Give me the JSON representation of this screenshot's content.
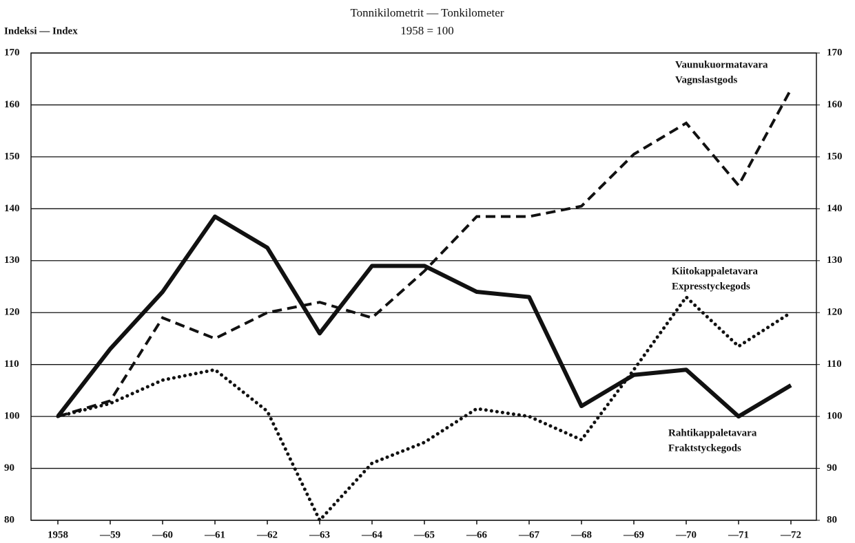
{
  "chart_data": {
    "type": "line",
    "title": "Tonnikilometrit — Tonkilometer",
    "subtitle": "1958 = 100",
    "y_label": "Indeksi — Index",
    "categories": [
      "1958",
      "—59",
      "—60",
      "—61",
      "—62",
      "—63",
      "—64",
      "—65",
      "—66",
      "—67",
      "—68",
      "—69",
      "—70",
      "—71",
      "—72"
    ],
    "series": [
      {
        "name": [
          "Rahtikappaletavara",
          "Fraktstyckegods"
        ],
        "color": "#111111",
        "style": "solid",
        "values": [
          100,
          113,
          124,
          138.5,
          132.5,
          116,
          129,
          129,
          124,
          123,
          102,
          108,
          109,
          100,
          106
        ]
      },
      {
        "name": [
          "Vaunukuormatavara",
          "Vagnslastgods"
        ],
        "color": "#111111",
        "style": "dashed",
        "values": [
          100,
          103,
          119,
          115,
          120,
          122,
          119,
          128,
          138.5,
          138.5,
          140.5,
          150.5,
          156.5,
          144.5,
          163
        ]
      },
      {
        "name": [
          "Kiitokappaletavara",
          "Expresstyckegods"
        ],
        "color": "#111111",
        "style": "dotted",
        "values": [
          100,
          102.5,
          107,
          109,
          101,
          80,
          91,
          95,
          101.5,
          100,
          95.5,
          109,
          123,
          113.5,
          120
        ]
      }
    ],
    "ylim": [
      80,
      170
    ],
    "yticks": [
      80,
      90,
      100,
      110,
      120,
      130,
      140,
      150,
      160,
      170
    ],
    "y2lim": [
      80,
      170
    ],
    "y2ticks": [
      80,
      90,
      100,
      110,
      120,
      130,
      140,
      150,
      160,
      170
    ],
    "grid": true
  }
}
